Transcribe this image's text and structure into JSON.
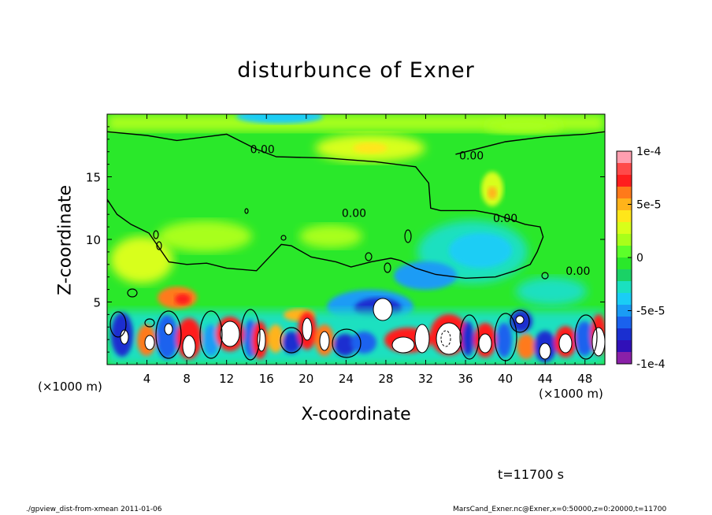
{
  "chart_data": {
    "type": "heatmap",
    "title": "disturbunce of Exner",
    "xlabel": "X-coordinate",
    "ylabel": "Z-coordinate",
    "x_unit": "(×1000 m)",
    "xlim": [
      0,
      50
    ],
    "ylim": [
      0,
      20
    ],
    "x_ticks": [
      4,
      8,
      12,
      16,
      20,
      24,
      28,
      32,
      36,
      40,
      44,
      48
    ],
    "y_ticks": [
      5,
      10,
      15
    ],
    "colorbar": {
      "range": [
        -0.0001,
        0.0001
      ],
      "tick_values": [
        0.0001,
        5e-05,
        0,
        -5e-05,
        -0.0001
      ],
      "tick_labels": [
        "1e-4",
        "5e-5",
        "0",
        "-5e-5",
        "-1e-4"
      ],
      "colors": [
        "#ff9fb0",
        "#ff4a4a",
        "#ff1e1e",
        "#ff7a1a",
        "#ffb31a",
        "#ffe61a",
        "#d8ff1a",
        "#a8ff1a",
        "#5cff2a",
        "#2ae82a",
        "#1ad266",
        "#1ae0c0",
        "#1acdf5",
        "#1a9cf5",
        "#1a62ee",
        "#1a2fd0",
        "#3010b8",
        "#8a20a8"
      ]
    },
    "contours": [
      {
        "label": "0.00",
        "points": [
          [
            0,
            18.6
          ],
          [
            4,
            18.3
          ],
          [
            7,
            17.9
          ],
          [
            12,
            18.4
          ],
          [
            15,
            17.2
          ],
          [
            17,
            16.6
          ],
          [
            22,
            16.5
          ],
          [
            27,
            16.2
          ],
          [
            31,
            15.8
          ],
          [
            32.3,
            14.5
          ],
          [
            32.5,
            12.5
          ],
          [
            33.5,
            12.3
          ],
          [
            37,
            12.3
          ],
          [
            39,
            12.0
          ],
          [
            42,
            11.2
          ],
          [
            43.5,
            11.0
          ],
          [
            43.8,
            10.2
          ],
          [
            43.2,
            9.0
          ],
          [
            42.5,
            8.0
          ],
          [
            41,
            7.5
          ],
          [
            39,
            7.0
          ],
          [
            36,
            6.9
          ],
          [
            33,
            7.2
          ],
          [
            31,
            7.7
          ],
          [
            29.5,
            8.3
          ],
          [
            28.5,
            8.5
          ],
          [
            26.5,
            8.2
          ],
          [
            24.5,
            7.8
          ],
          [
            23,
            8.2
          ],
          [
            20.5,
            8.6
          ],
          [
            18.5,
            9.5
          ],
          [
            17.5,
            9.6
          ],
          [
            15,
            7.5
          ],
          [
            12,
            7.7
          ],
          [
            10,
            8.1
          ],
          [
            8,
            8.0
          ],
          [
            6.2,
            8.2
          ],
          [
            4.2,
            10.5
          ],
          [
            2.4,
            11.2
          ],
          [
            1,
            12.0
          ],
          [
            0,
            13.2
          ]
        ]
      },
      {
        "label": "0.00",
        "points": [
          [
            35,
            16.8
          ],
          [
            40,
            17.8
          ],
          [
            44,
            18.2
          ],
          [
            48,
            18.4
          ],
          [
            50,
            18.6
          ]
        ]
      }
    ],
    "contour_labels": [
      {
        "text": "0.00",
        "x": 15.6,
        "z": 17.2
      },
      {
        "text": "0.00",
        "x": 24.8,
        "z": 12.1
      },
      {
        "text": "0.00",
        "x": 36.6,
        "z": 16.7
      },
      {
        "text": "0.00",
        "x": 40.0,
        "z": 11.7
      },
      {
        "text": "0.00",
        "x": 47.3,
        "z": 7.5
      }
    ],
    "features": [
      {
        "kind": "positive",
        "x": 28,
        "z": 2.1,
        "rx": 1.3,
        "rz": 1.3
      },
      {
        "kind": "positive",
        "x": 30,
        "z": 1.4,
        "rx": 1.6,
        "rz": 1.0
      },
      {
        "kind": "positive",
        "x": 23,
        "z": 17.0,
        "rx": 4,
        "rz": 1.0
      },
      {
        "kind": "negative",
        "x": 27.5,
        "z": 4.3,
        "rx": 2.2,
        "rz": 1.6
      },
      {
        "kind": "negative",
        "x": 37,
        "z": 9.5,
        "rx": 3,
        "rz": 2.5
      }
    ]
  },
  "annotations": {
    "time": "t=11700 s",
    "footer_left": "./gpview_dist-from-xmean 2011-01-06",
    "footer_right": "MarsCand_Exner.nc@Exner,x=0:50000,z=0:20000,t=11700"
  }
}
